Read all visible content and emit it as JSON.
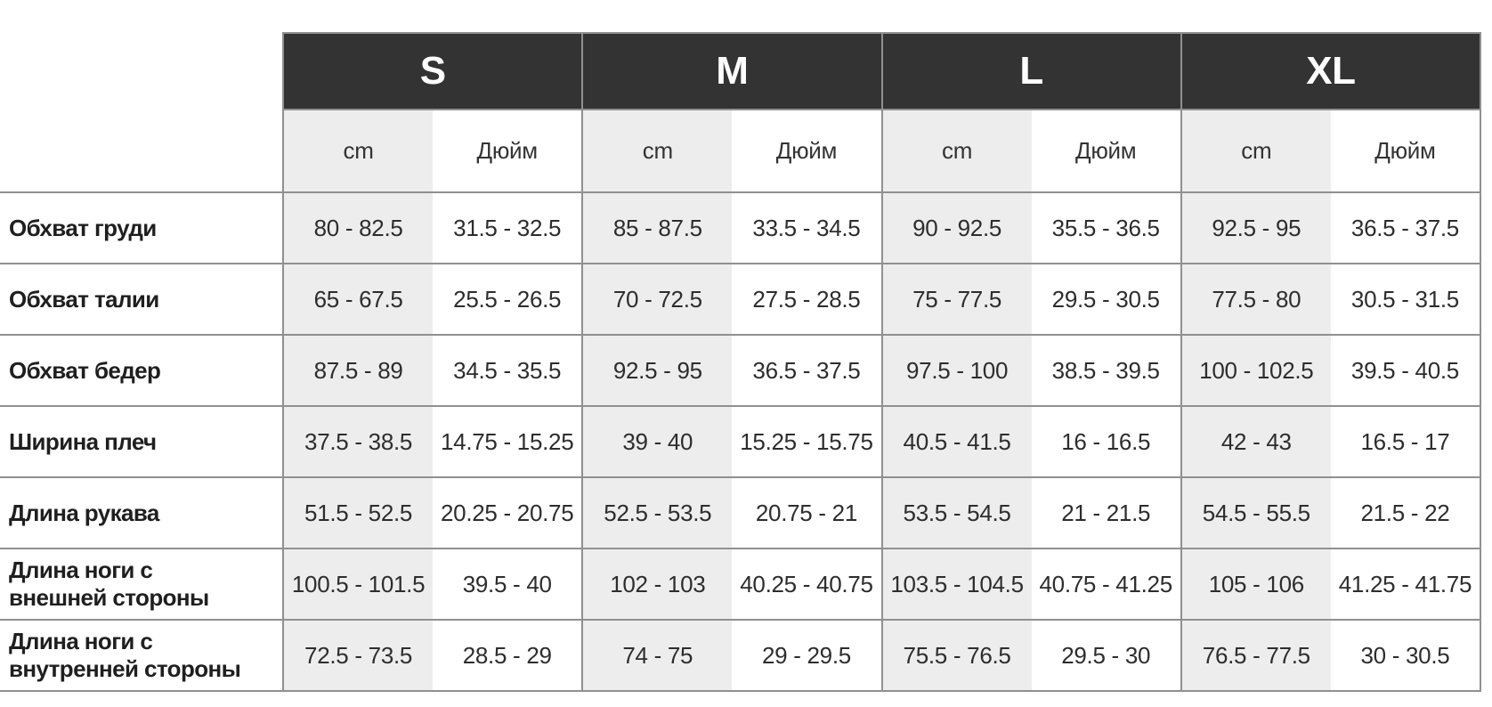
{
  "table": {
    "sizes": [
      "S",
      "M",
      "L",
      "XL"
    ],
    "units": {
      "cm": "cm",
      "inch": "Дюйм"
    },
    "rows": [
      {
        "label": "Обхват груди",
        "cells": [
          "80 - 82.5",
          "31.5 - 32.5",
          "85 - 87.5",
          "33.5 - 34.5",
          "90 - 92.5",
          "35.5 - 36.5",
          "92.5 - 95",
          "36.5 - 37.5"
        ]
      },
      {
        "label": "Обхват талии",
        "cells": [
          "65 - 67.5",
          "25.5 - 26.5",
          "70 - 72.5",
          "27.5 - 28.5",
          "75 - 77.5",
          "29.5 - 30.5",
          "77.5 - 80",
          "30.5 - 31.5"
        ]
      },
      {
        "label": "Обхват бедер",
        "cells": [
          "87.5 - 89",
          "34.5 - 35.5",
          "92.5 - 95",
          "36.5 - 37.5",
          "97.5 - 100",
          "38.5 - 39.5",
          "100 - 102.5",
          "39.5 - 40.5"
        ]
      },
      {
        "label": "Ширина плеч",
        "cells": [
          "37.5 - 38.5",
          "14.75 - 15.25",
          "39 - 40",
          "15.25 - 15.75",
          "40.5 - 41.5",
          "16 - 16.5",
          "42 - 43",
          "16.5 - 17"
        ]
      },
      {
        "label": "Длина рукава",
        "cells": [
          "51.5 - 52.5",
          "20.25 - 20.75",
          "52.5 - 53.5",
          "20.75 - 21",
          "53.5 - 54.5",
          "21 - 21.5",
          "54.5 - 55.5",
          "21.5 - 22"
        ]
      },
      {
        "label": "Длина ноги с внешней стороны",
        "cells": [
          "100.5 - 101.5",
          "39.5 - 40",
          "102 - 103",
          "40.25 - 40.75",
          "103.5 - 104.5",
          "40.75 - 41.25",
          "105 - 106",
          "41.25 - 41.75"
        ]
      },
      {
        "label": "Длина ноги с внутренней стороны",
        "cells": [
          "72.5 - 73.5",
          "28.5 - 29",
          "74 - 75",
          "29 - 29.5",
          "75.5 - 76.5",
          "29.5 - 30",
          "76.5 - 77.5",
          "30 - 30.5"
        ]
      }
    ],
    "colors": {
      "header_bg": "#333333",
      "header_text": "#ffffff",
      "stripe_bg": "#ededed",
      "border": "#909090",
      "label_text": "#1f1f1f",
      "value_text": "#2d2d2d"
    }
  }
}
